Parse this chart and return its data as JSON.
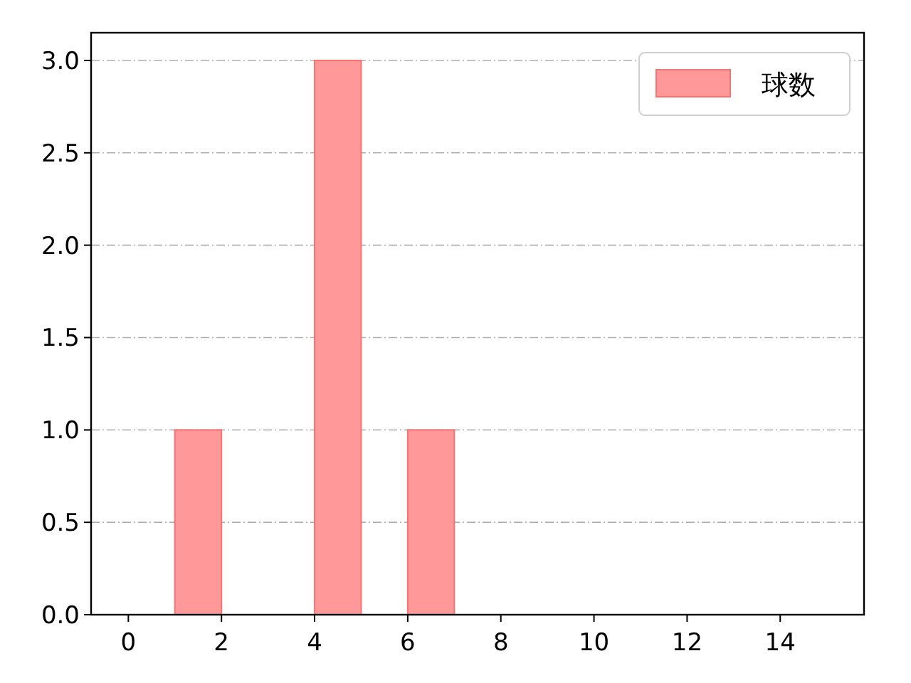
{
  "chart_data": {
    "type": "histogram",
    "bins": [
      0,
      1,
      2,
      3,
      4,
      5,
      6,
      7,
      8,
      9,
      10,
      11,
      12,
      13,
      14,
      15
    ],
    "series": [
      {
        "name": "球数",
        "color": "#ff9999",
        "values": [
          0,
          1,
          0,
          0,
          3,
          0,
          1,
          0,
          0,
          0,
          0,
          0,
          0,
          0,
          0
        ]
      }
    ],
    "xlim": [
      -0.8,
      15.8
    ],
    "xticks": [
      0,
      2,
      4,
      6,
      8,
      10,
      12,
      14
    ],
    "ylim": [
      0,
      3.15
    ],
    "yticks": [
      {
        "value": 0,
        "label": "0.0"
      },
      {
        "value": 0.5,
        "label": "0.5"
      },
      {
        "value": 1,
        "label": "1.0"
      },
      {
        "value": 1.5,
        "label": "1.5"
      },
      {
        "value": 2,
        "label": "2.0"
      },
      {
        "value": 2.5,
        "label": "2.5"
      },
      {
        "value": 3,
        "label": "3.0"
      }
    ],
    "grid": "y",
    "legend": "top right"
  }
}
